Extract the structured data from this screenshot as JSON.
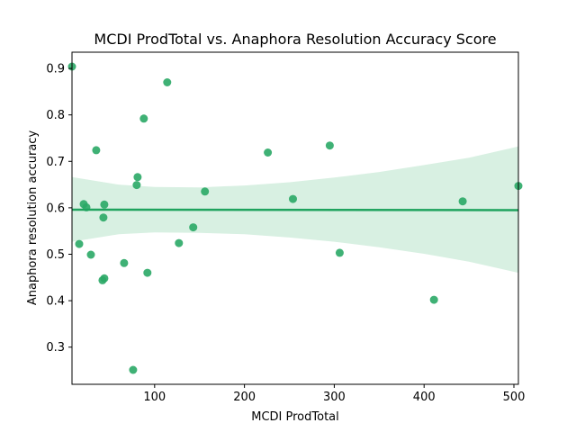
{
  "chart_data": {
    "type": "scatter",
    "title": "MCDI ProdTotal vs. Anaphora Resolution Accuracy Score",
    "xlabel": "MCDI ProdTotal",
    "ylabel": "Anaphora resolution accuracy",
    "xlim": [
      8,
      505
    ],
    "ylim": [
      0.22,
      0.935
    ],
    "xticks": [
      100,
      200,
      300,
      400,
      500
    ],
    "yticks": [
      0.3,
      0.4,
      0.5,
      0.6,
      0.7,
      0.8,
      0.9
    ],
    "grid": false,
    "point_color": "#2aa866",
    "line_color": "#1fa35e",
    "band_color": "#d8f0e2",
    "points": [
      {
        "x": 8,
        "y": 0.904
      },
      {
        "x": 16,
        "y": 0.522
      },
      {
        "x": 21,
        "y": 0.608
      },
      {
        "x": 24,
        "y": 0.601
      },
      {
        "x": 29,
        "y": 0.499
      },
      {
        "x": 35,
        "y": 0.724
      },
      {
        "x": 42,
        "y": 0.444
      },
      {
        "x": 43,
        "y": 0.579
      },
      {
        "x": 44,
        "y": 0.607
      },
      {
        "x": 44,
        "y": 0.448
      },
      {
        "x": 66,
        "y": 0.481
      },
      {
        "x": 76,
        "y": 0.251
      },
      {
        "x": 80,
        "y": 0.649
      },
      {
        "x": 81,
        "y": 0.666
      },
      {
        "x": 88,
        "y": 0.792
      },
      {
        "x": 92,
        "y": 0.46
      },
      {
        "x": 114,
        "y": 0.87
      },
      {
        "x": 127,
        "y": 0.524
      },
      {
        "x": 143,
        "y": 0.558
      },
      {
        "x": 156,
        "y": 0.635
      },
      {
        "x": 226,
        "y": 0.719
      },
      {
        "x": 254,
        "y": 0.619
      },
      {
        "x": 295,
        "y": 0.734
      },
      {
        "x": 306,
        "y": 0.503
      },
      {
        "x": 411,
        "y": 0.402
      },
      {
        "x": 443,
        "y": 0.614
      },
      {
        "x": 505,
        "y": 0.647
      }
    ],
    "regression": {
      "x": [
        8,
        505
      ],
      "y": [
        0.596,
        0.595
      ]
    },
    "confidence_band": {
      "x": [
        8,
        60,
        100,
        150,
        200,
        250,
        300,
        350,
        400,
        450,
        505
      ],
      "lower": [
        0.527,
        0.543,
        0.547,
        0.546,
        0.543,
        0.536,
        0.527,
        0.515,
        0.501,
        0.484,
        0.46
      ],
      "upper": [
        0.666,
        0.65,
        0.645,
        0.644,
        0.648,
        0.655,
        0.665,
        0.677,
        0.692,
        0.708,
        0.732
      ]
    }
  }
}
